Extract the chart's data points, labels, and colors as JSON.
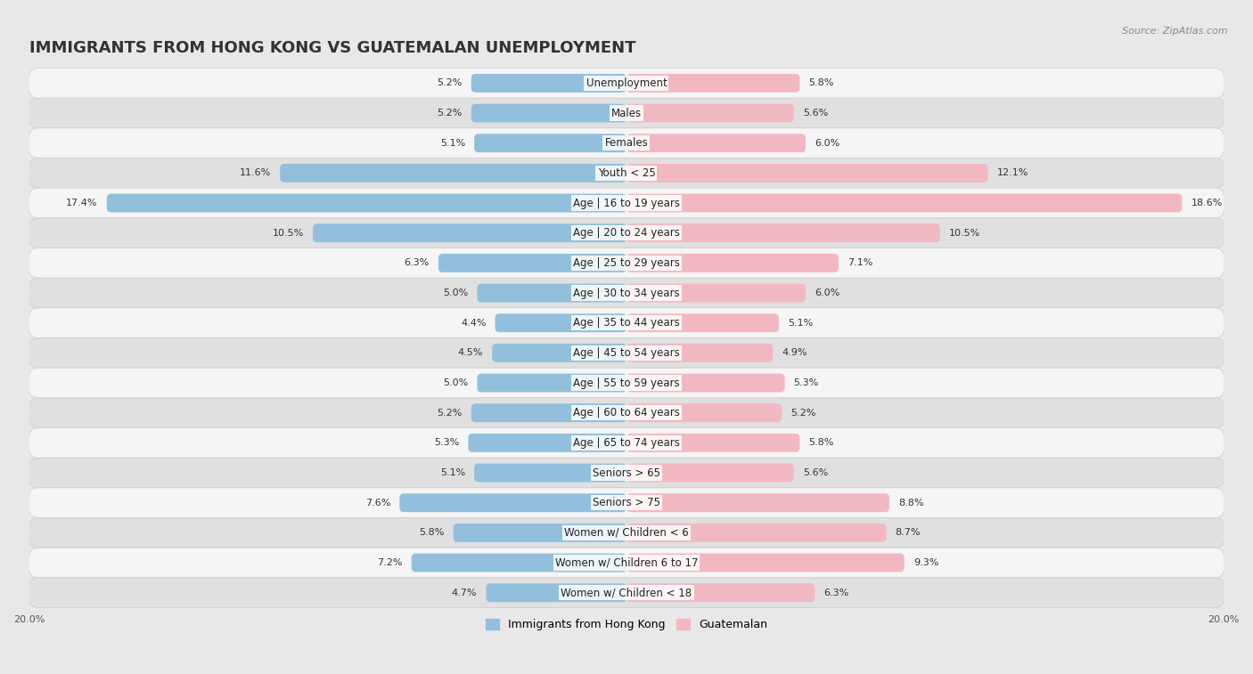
{
  "title": "IMMIGRANTS FROM HONG KONG VS GUATEMALAN UNEMPLOYMENT",
  "source": "Source: ZipAtlas.com",
  "categories": [
    "Unemployment",
    "Males",
    "Females",
    "Youth < 25",
    "Age | 16 to 19 years",
    "Age | 20 to 24 years",
    "Age | 25 to 29 years",
    "Age | 30 to 34 years",
    "Age | 35 to 44 years",
    "Age | 45 to 54 years",
    "Age | 55 to 59 years",
    "Age | 60 to 64 years",
    "Age | 65 to 74 years",
    "Seniors > 65",
    "Seniors > 75",
    "Women w/ Children < 6",
    "Women w/ Children 6 to 17",
    "Women w/ Children < 18"
  ],
  "hong_kong_values": [
    5.2,
    5.2,
    5.1,
    11.6,
    17.4,
    10.5,
    6.3,
    5.0,
    4.4,
    4.5,
    5.0,
    5.2,
    5.3,
    5.1,
    7.6,
    5.8,
    7.2,
    4.7
  ],
  "guatemalan_values": [
    5.8,
    5.6,
    6.0,
    12.1,
    18.6,
    10.5,
    7.1,
    6.0,
    5.1,
    4.9,
    5.3,
    5.2,
    5.8,
    5.6,
    8.8,
    8.7,
    9.3,
    6.3
  ],
  "hong_kong_color": "#92C0DC",
  "hong_kong_color_dark": "#5B9BC8",
  "guatemalan_color": "#F2B8C2",
  "guatemalan_color_dark": "#E8849A",
  "highlight_hk_color": "#4A90C4",
  "highlight_gt_color": "#E06080",
  "hong_kong_label": "Immigrants from Hong Kong",
  "guatemalan_label": "Guatemalan",
  "xlim": 20.0,
  "background_color": "#e8e8e8",
  "row_light_color": "#f5f5f5",
  "row_dark_color": "#e0e0e0",
  "title_fontsize": 13,
  "label_fontsize": 8.5,
  "value_fontsize": 8,
  "source_fontsize": 8,
  "axis_label_fontsize": 8
}
